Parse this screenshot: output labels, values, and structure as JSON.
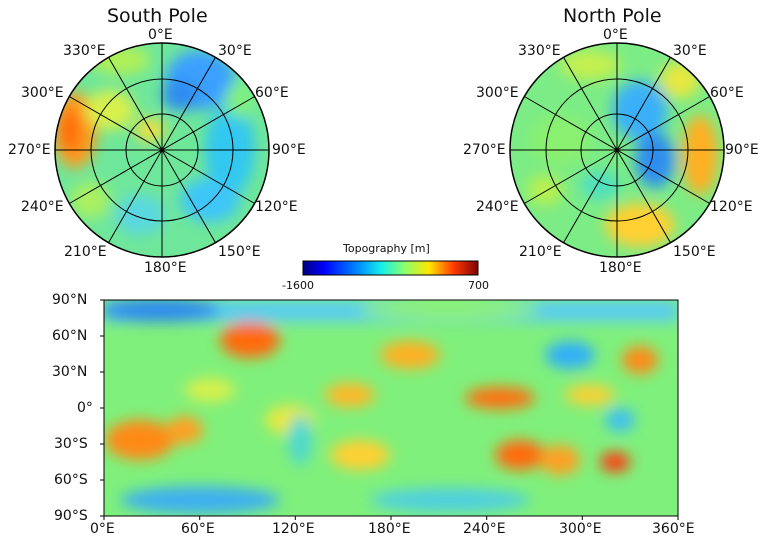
{
  "south_pole": {
    "title": "South Pole",
    "lon_labels": [
      "0°E",
      "30°E",
      "60°E",
      "90°E",
      "120°E",
      "150°E",
      "180°E",
      "210°E",
      "240°E",
      "270°E",
      "300°E",
      "330°E"
    ]
  },
  "north_pole": {
    "title": "North Pole",
    "lon_labels": [
      "0°E",
      "30°E",
      "60°E",
      "90°E",
      "120°E",
      "150°E",
      "180°E",
      "210°E",
      "240°E",
      "270°E",
      "300°E",
      "330°E"
    ]
  },
  "colorbar": {
    "title": "Topography [m]",
    "min_label": "-1600",
    "max_label": "700",
    "colormap": [
      "#00007f",
      "#0000ff",
      "#0080ff",
      "#00e5ff",
      "#7dff7a",
      "#ffe600",
      "#ff4a00",
      "#7f0000"
    ]
  },
  "global_map": {
    "lat_labels": [
      "90°N",
      "60°N",
      "30°N",
      "0°",
      "30°S",
      "60°S",
      "90°S"
    ],
    "lon_labels": [
      "0°E",
      "60°E",
      "120°E",
      "180°E",
      "240°E",
      "300°E",
      "360°E"
    ]
  }
}
